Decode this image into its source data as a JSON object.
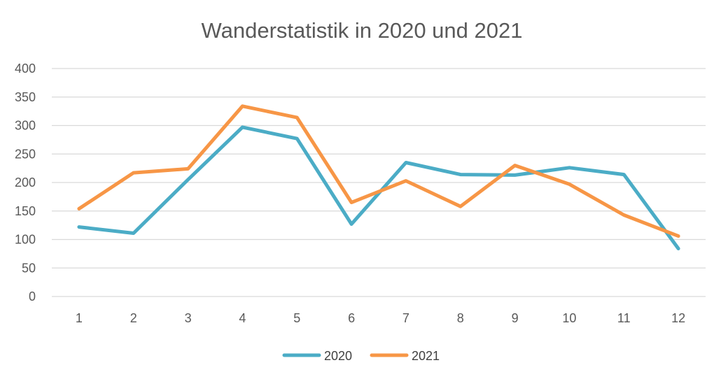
{
  "chart_data": {
    "type": "line",
    "title": "Wanderstatistik in 2020 und 2021",
    "xlabel": "",
    "ylabel": "",
    "categories": [
      "1",
      "2",
      "3",
      "4",
      "5",
      "6",
      "7",
      "8",
      "9",
      "10",
      "11",
      "12"
    ],
    "ylim": [
      0,
      400
    ],
    "yticks": [
      0,
      50,
      100,
      150,
      200,
      250,
      300,
      350,
      400
    ],
    "ytick_labels": [
      "0",
      "50",
      "100",
      "150",
      "200",
      "250",
      "300",
      "350",
      "400"
    ],
    "grid": true,
    "legend_position": "bottom",
    "series": [
      {
        "name": "2020",
        "color": "#4bacc6",
        "values": [
          122,
          111,
          205,
          297,
          277,
          127,
          235,
          214,
          213,
          226,
          214,
          84
        ]
      },
      {
        "name": "2021",
        "color": "#f79646",
        "values": [
          154,
          217,
          224,
          334,
          314,
          165,
          203,
          158,
          230,
          197,
          143,
          106
        ]
      }
    ]
  }
}
